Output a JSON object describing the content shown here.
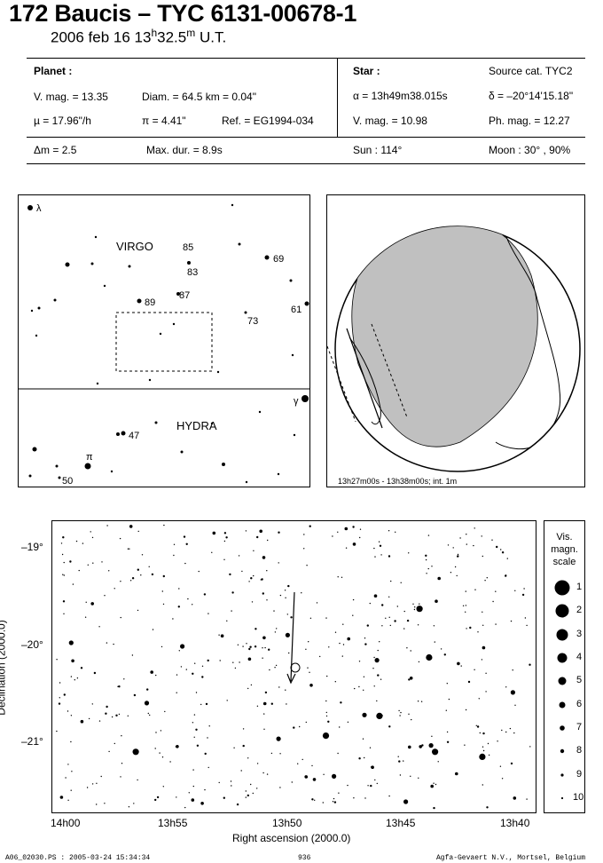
{
  "header": {
    "title": "172 Baucis  –  TYC 6131-00678-1",
    "date_prefix": "2006 feb 16  13",
    "date_sup": "h",
    "date_min": "32.5",
    "date_sup2": "m",
    "date_suffix": " U.T."
  },
  "planet": {
    "heading": "Planet :",
    "vmag": "V. mag. = 13.35",
    "diam": "Diam. = 64.5 km = 0.04\"",
    "mu": "µ =  17.96\"/h",
    "pi": "π =  4.41\"",
    "ref": "Ref. = EG1994-034"
  },
  "star": {
    "heading": "Star :",
    "source": "Source cat.  TYC2",
    "alpha": "α = 13h49m38.015s",
    "delta": "δ = –20°14'15.18\"",
    "vmag": "V. mag. = 10.98",
    "phmag": "Ph. mag. = 12.27"
  },
  "circumstances": {
    "dm": "Δm = 2.5",
    "maxdur": "Max. dur. = 8.9s",
    "sun": "Sun : 114°",
    "moon": "Moon :  30° , 90%"
  },
  "finder": {
    "constellation_top": "VIRGO",
    "constellation_bottom": "HYDRA",
    "labels": [
      "λ",
      "85",
      "83",
      "69",
      "87",
      "89",
      "61",
      "73",
      "γ",
      "47",
      "π",
      "50"
    ]
  },
  "globe": {
    "caption": "13h27m00s - 13h38m00s; int.  1m"
  },
  "detail": {
    "dec_ticks": [
      "–19°",
      "–20°",
      "–21°"
    ],
    "ra_ticks": [
      "14h00",
      "13h55",
      "13h50",
      "13h45",
      "13h40"
    ],
    "xlabel": "Right ascension (2000.0)",
    "ylabel": "Declination (2000.0)"
  },
  "scale": {
    "title": [
      "Vis.",
      "magn.",
      "scale"
    ],
    "mags": [
      "1",
      "2",
      "3",
      "4",
      "5",
      "6",
      "7",
      "8",
      "9",
      "10"
    ]
  },
  "footer": {
    "left": "A06_02030.PS : 2005-03-24 15:34:34",
    "center": "936",
    "right": "Agfa-Gevaert N.V., Mortsel, Belgium"
  }
}
